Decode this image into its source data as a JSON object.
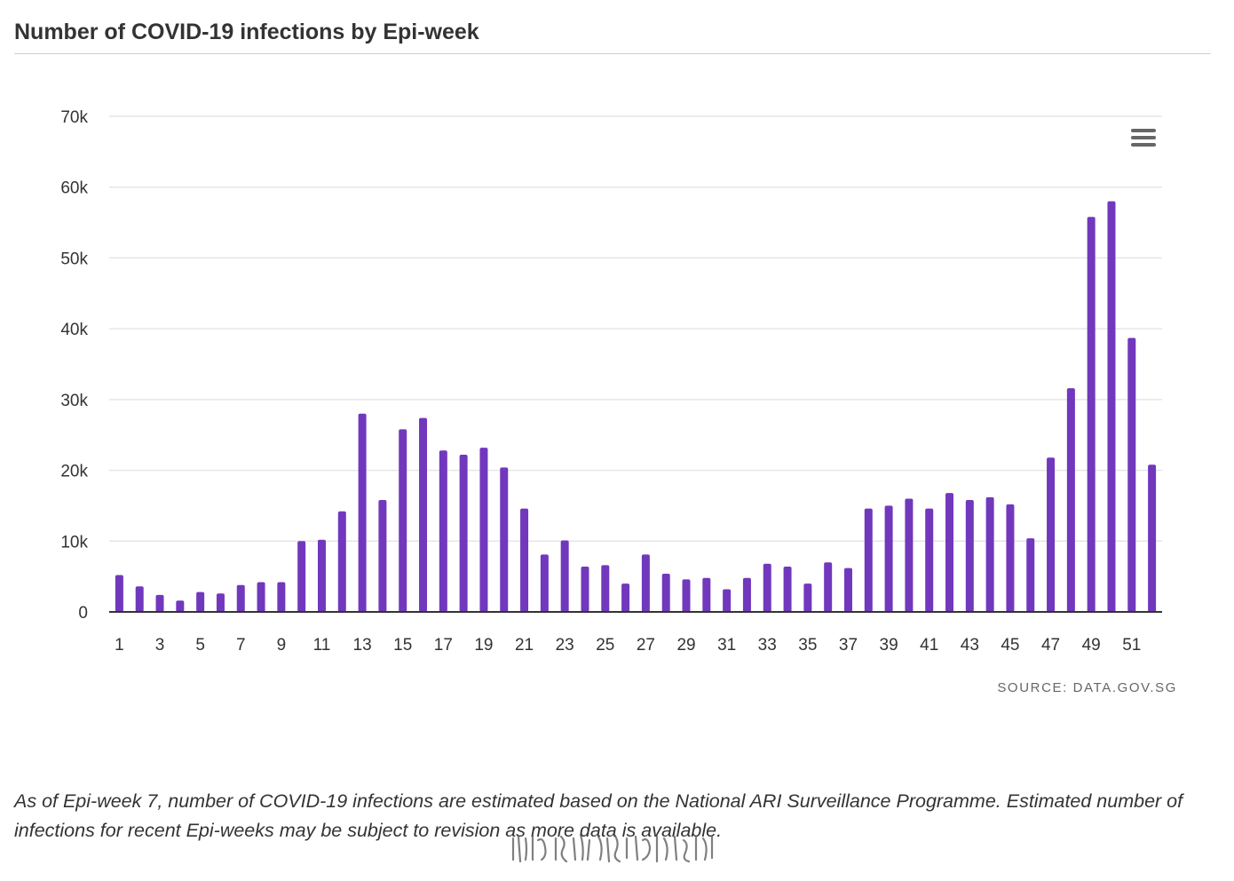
{
  "title": "Number of COVID-19 infections by Epi-week",
  "source": "SOURCE: DATA.GOV.SG",
  "caption": "As of Epi-week 7, number of COVID-19 infections are estimated based on the National ARI Surveillance Programme. Estimated number of infections for recent Epi-weeks may be subject to revision as more data is available.",
  "colors": {
    "bar": "#7138bd",
    "grid": "#e6e6e6",
    "axis": "#333333"
  },
  "icons": {
    "menu": "hamburger-menu-icon"
  },
  "chart_data": {
    "type": "bar",
    "title": "Number of COVID-19 infections by Epi-week",
    "xlabel": "",
    "ylabel": "",
    "categories": [
      1,
      2,
      3,
      4,
      5,
      6,
      7,
      8,
      9,
      10,
      11,
      12,
      13,
      14,
      15,
      16,
      17,
      18,
      19,
      20,
      21,
      22,
      23,
      24,
      25,
      26,
      27,
      28,
      29,
      30,
      31,
      32,
      33,
      34,
      35,
      36,
      37,
      38,
      39,
      40,
      41,
      42,
      43,
      44,
      45,
      46,
      47,
      48,
      49,
      50,
      51,
      52
    ],
    "values": [
      5200,
      3600,
      2400,
      1600,
      2800,
      2600,
      3800,
      4200,
      4200,
      10000,
      10200,
      14200,
      28000,
      15800,
      25800,
      27400,
      22800,
      22200,
      23200,
      20400,
      14600,
      8100,
      10100,
      6400,
      6600,
      4000,
      8100,
      5400,
      4600,
      4800,
      3200,
      4800,
      6800,
      6400,
      4000,
      7000,
      6200,
      14600,
      15000,
      16000,
      14600,
      16800,
      15800,
      16200,
      15200,
      10400,
      21800,
      31600,
      55800,
      58000,
      38700,
      20800
    ],
    "ylim": [
      0,
      70000
    ],
    "yticks": [
      0,
      10000,
      20000,
      30000,
      40000,
      50000,
      60000,
      70000
    ],
    "ytick_labels": [
      "0",
      "10k",
      "20k",
      "30k",
      "40k",
      "50k",
      "60k",
      "70k"
    ],
    "xtick_labels": [
      "1",
      "3",
      "5",
      "7",
      "9",
      "11",
      "13",
      "15",
      "17",
      "19",
      "21",
      "23",
      "25",
      "27",
      "29",
      "31",
      "33",
      "35",
      "37",
      "39",
      "41",
      "43",
      "45",
      "47",
      "49",
      "51"
    ],
    "grid": true,
    "legend": "none"
  }
}
